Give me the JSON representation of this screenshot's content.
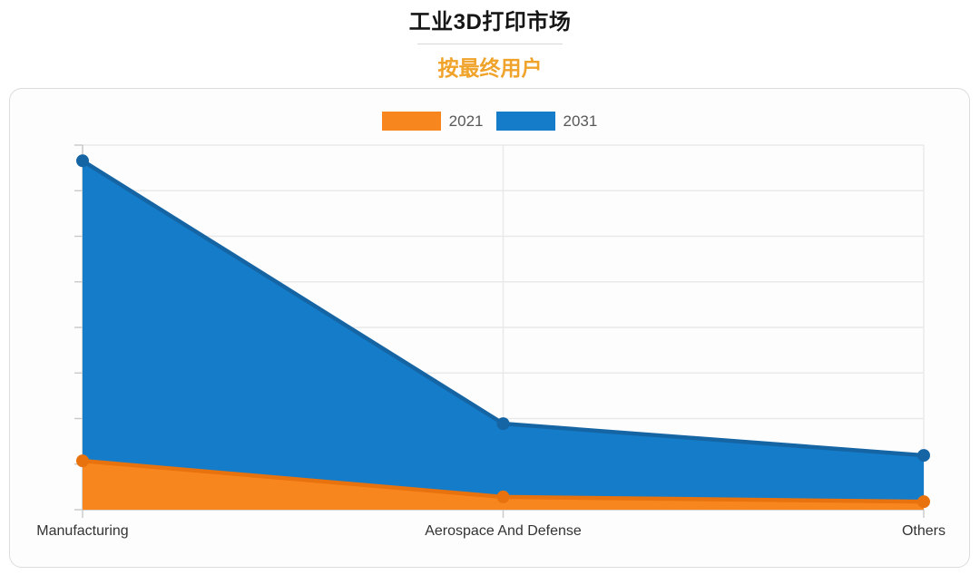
{
  "header": {
    "title": "工业3D打印市场",
    "subtitle": "按最终用户",
    "title_color": "#161616",
    "subtitle_color": "#f0a32a"
  },
  "chart_data": {
    "type": "area",
    "title": "工业3D打印市场",
    "subtitle": "按最终用户",
    "categories": [
      "Manufacturing",
      "Aerospace And Defense",
      "Others"
    ],
    "series": [
      {
        "name": "2021",
        "color": "#f8861e",
        "line_color": "#e8720e",
        "values": [
          13.4,
          3.5,
          2.2
        ]
      },
      {
        "name": "2031",
        "color": "#147cc8",
        "line_color": "#1565a5",
        "values": [
          95.7,
          23.6,
          14.9
        ]
      }
    ],
    "ylim": [
      0,
      100
    ],
    "y_axis_labels": "none (axis unlabeled; values estimated as percent of axis height)",
    "x_axis_label": "",
    "y_axis_label": "",
    "grid": "9 horizontal gridlines (8 intervals), vertical gridline at each category",
    "legend_position": "top-center",
    "grid_color": "#e9e9e9",
    "axis_color": "#c9c9c9",
    "category_label_color": "#333333"
  }
}
